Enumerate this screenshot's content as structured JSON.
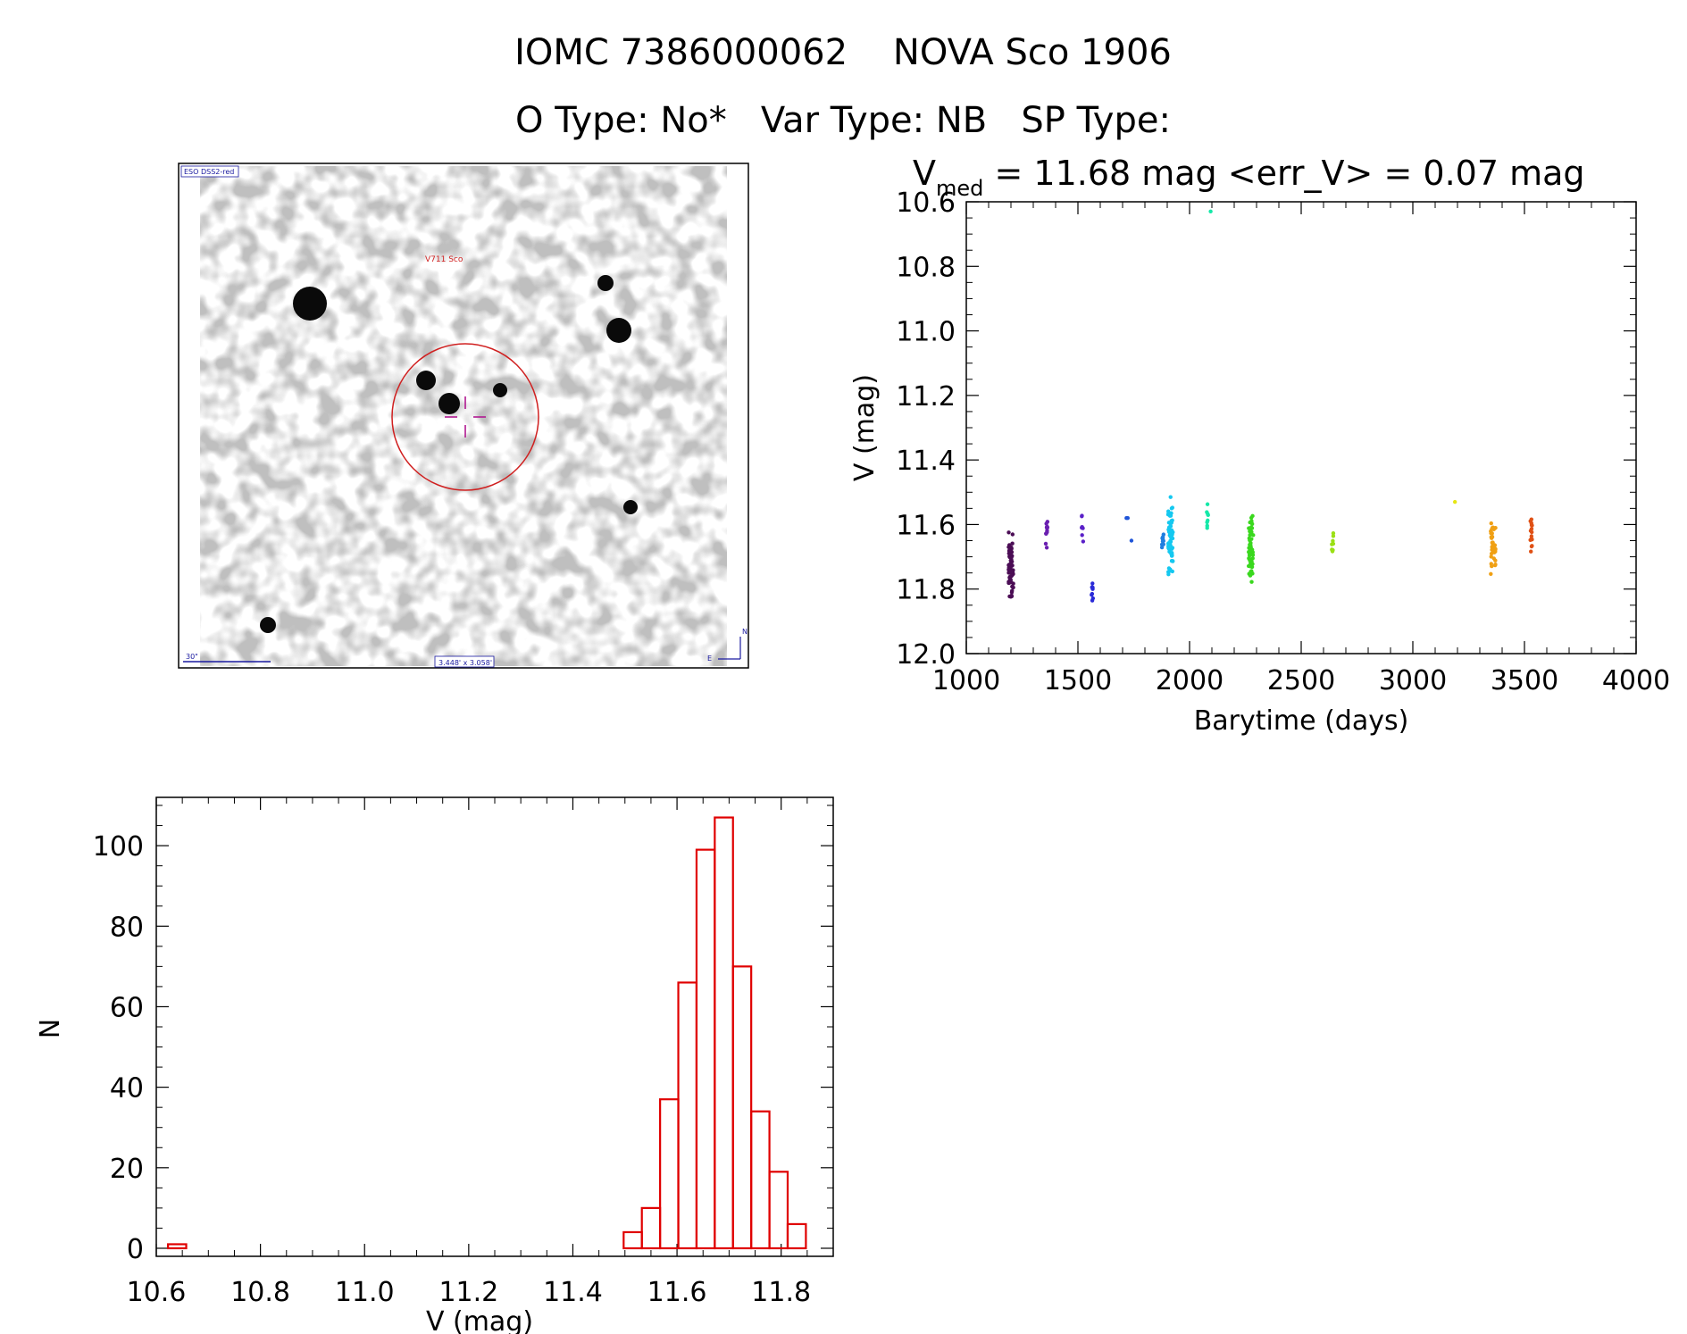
{
  "header": {
    "title": "IOMC 7386000062    NOVA Sco 1906",
    "subtitle": "O Type: No*   Var Type: NB   SP Type:"
  },
  "finder": {
    "survey_label": "ESO DSS2-red",
    "target_label": "V711 Sco",
    "scale_label": "30\"",
    "fov_label": "3.448' x 3.058'",
    "north_label": "N",
    "east_label": "E"
  },
  "lightcurve_stats": {
    "prefix": "V",
    "subscript": "med",
    "text": " = 11.68 mag <err_V> = 0.07 mag"
  },
  "chart_data": [
    {
      "type": "scatter",
      "xlabel": "Barytime (days)",
      "ylabel": "V (mag)",
      "xlim": [
        1000,
        4000
      ],
      "ylim": [
        12.0,
        10.6
      ],
      "y_inverted": true,
      "xticks": [
        "1000",
        "1500",
        "2000",
        "2500",
        "3000",
        "3500",
        "4000"
      ],
      "yticks": [
        "10.6",
        "10.8",
        "11.0",
        "11.2",
        "11.4",
        "11.6",
        "11.8",
        "12.0"
      ],
      "groups": [
        {
          "x": 1200,
          "y_lo": 11.62,
          "y_hi": 11.84,
          "n": 70,
          "color": "#4b0d55"
        },
        {
          "x": 1360,
          "y_lo": 11.52,
          "y_hi": 11.72,
          "n": 12,
          "color": "#6a1fb0"
        },
        {
          "x": 1520,
          "y_lo": 11.56,
          "y_hi": 11.66,
          "n": 8,
          "color": "#5a20c8"
        },
        {
          "x": 1565,
          "y_lo": 11.76,
          "y_hi": 11.84,
          "n": 8,
          "color": "#2a2ad8"
        },
        {
          "x": 1720,
          "y_lo": 11.58,
          "y_hi": 11.58,
          "n": 2,
          "color": "#1f55d8"
        },
        {
          "x": 1740,
          "y_lo": 11.65,
          "y_hi": 11.65,
          "n": 1,
          "color": "#1f55d8"
        },
        {
          "x": 1880,
          "y_lo": 11.62,
          "y_hi": 11.68,
          "n": 10,
          "color": "#1f7fe0"
        },
        {
          "x": 1915,
          "y_lo": 11.51,
          "y_hi": 11.78,
          "n": 60,
          "color": "#14c8f0"
        },
        {
          "x": 2080,
          "y_lo": 11.53,
          "y_hi": 11.63,
          "n": 8,
          "color": "#14e8a8"
        },
        {
          "x": 2095,
          "y_lo": 10.63,
          "y_hi": 10.63,
          "n": 1,
          "color": "#14e8a8"
        },
        {
          "x": 2275,
          "y_lo": 11.56,
          "y_hi": 11.81,
          "n": 60,
          "color": "#3ad81e"
        },
        {
          "x": 2640,
          "y_lo": 11.62,
          "y_hi": 11.69,
          "n": 8,
          "color": "#9ae014"
        },
        {
          "x": 3190,
          "y_lo": 11.53,
          "y_hi": 11.53,
          "n": 1,
          "color": "#e6e614"
        },
        {
          "x": 3360,
          "y_lo": 11.56,
          "y_hi": 11.76,
          "n": 40,
          "color": "#f0a014"
        },
        {
          "x": 3530,
          "y_lo": 11.54,
          "y_hi": 11.7,
          "n": 16,
          "color": "#e05014"
        }
      ]
    },
    {
      "type": "bar",
      "xlabel": "V (mag)",
      "ylabel": "N",
      "xlim": [
        10.6,
        11.9
      ],
      "ylim": [
        -2,
        112
      ],
      "xticks": [
        "10.6",
        "10.8",
        "11.0",
        "11.2",
        "11.4",
        "11.6",
        "11.8"
      ],
      "yticks": [
        "0",
        "20",
        "40",
        "60",
        "80",
        "100"
      ],
      "bin_width": 0.035,
      "bin_start": 10.6225,
      "values": [
        1,
        0,
        0,
        0,
        0,
        0,
        0,
        0,
        0,
        0,
        0,
        0,
        0,
        0,
        0,
        0,
        0,
        0,
        0,
        0,
        0,
        0,
        0,
        0,
        0,
        4,
        10,
        37,
        66,
        99,
        107,
        70,
        34,
        19,
        6
      ],
      "color": "#e00000"
    }
  ]
}
